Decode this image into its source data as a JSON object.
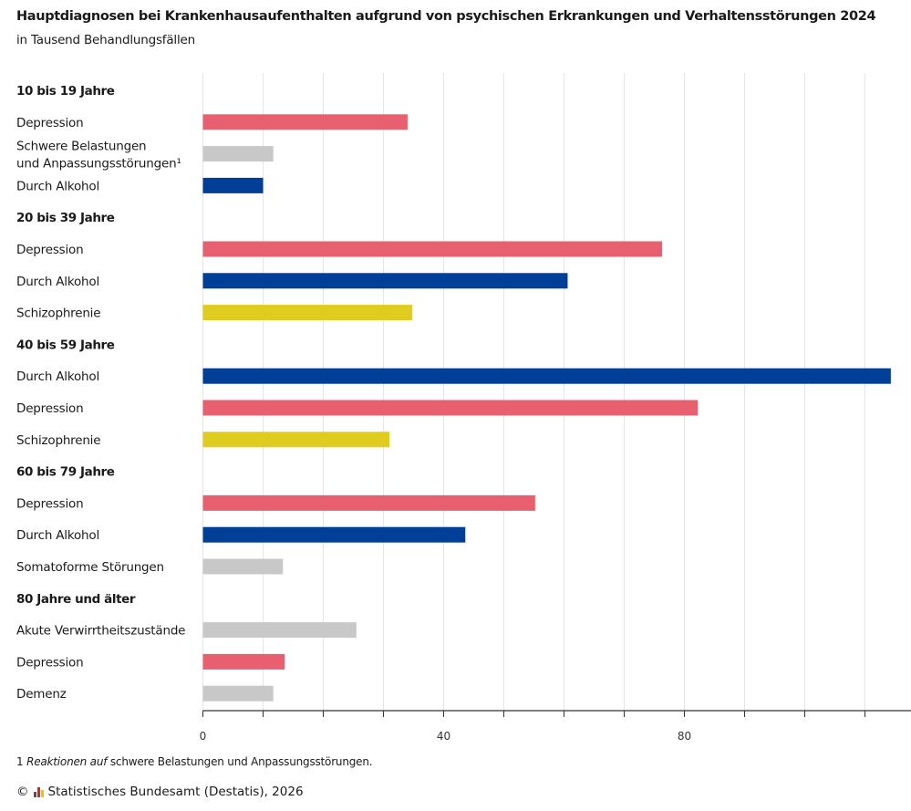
{
  "header": {
    "title": "Hauptdiagnosen bei Krankenhausaufenthalten aufgrund von psychischen Erkrankungen und Verhaltensstörungen 2024",
    "subtitle": "in Tausend Behandlungsfällen"
  },
  "footnote": {
    "number": "1",
    "italic": "Reaktionen auf",
    "text": " schwere Belastungen und Anpassungsstörungen."
  },
  "source": {
    "copyright": "©",
    "text": "Statistisches Bundesamt (Destatis), 2026"
  },
  "colors": {
    "depression": "#e8606f",
    "alkohol": "#003f98",
    "schizophrenie": "#e0cc1f",
    "other": "#c8c8c8",
    "grid": "#e6e6e6",
    "axis": "#333333"
  },
  "chart_data": {
    "type": "bar",
    "orientation": "horizontal",
    "title": "Hauptdiagnosen bei Krankenhausaufenthalten aufgrund von psychischen Erkrankungen und Verhaltensstörungen 2024",
    "subtitle": "in Tausend Behandlungsfällen",
    "xlabel": "",
    "ylabel": "",
    "xlim": [
      0,
      117
    ],
    "xticks": [
      0,
      10,
      20,
      30,
      40,
      50,
      60,
      70,
      80,
      90,
      100,
      110
    ],
    "xtick_labels": [
      {
        "value": 0,
        "label": "0"
      },
      {
        "value": 40,
        "label": "40"
      },
      {
        "value": 80,
        "label": "80"
      }
    ],
    "grid": true,
    "legend": "none",
    "groups": [
      {
        "label": "10 bis 19 Jahre",
        "bars": [
          {
            "label": "Depression",
            "value": 34,
            "category": "depression"
          },
          {
            "label": "Schwere Belastungen\nund Anpassungsstörungen¹",
            "value": 11.7,
            "category": "other"
          },
          {
            "label": "Durch Alkohol",
            "value": 10,
            "category": "alkohol"
          }
        ]
      },
      {
        "label": "20 bis 39 Jahre",
        "bars": [
          {
            "label": "Depression",
            "value": 76.3,
            "category": "depression"
          },
          {
            "label": "Durch Alkohol",
            "value": 60.6,
            "category": "alkohol"
          },
          {
            "label": "Schizophrenie",
            "value": 34.8,
            "category": "schizophrenie"
          }
        ]
      },
      {
        "label": "40 bis 59 Jahre",
        "bars": [
          {
            "label": "Durch Alkohol",
            "value": 114.3,
            "category": "alkohol"
          },
          {
            "label": "Depression",
            "value": 82.2,
            "category": "depression"
          },
          {
            "label": "Schizophrenie",
            "value": 31,
            "category": "schizophrenie"
          }
        ]
      },
      {
        "label": "60 bis 79 Jahre",
        "bars": [
          {
            "label": "Depression",
            "value": 55.2,
            "category": "depression"
          },
          {
            "label": "Durch Alkohol",
            "value": 43.6,
            "category": "alkohol"
          },
          {
            "label": "Somatoforme Störungen",
            "value": 13.3,
            "category": "other"
          }
        ]
      },
      {
        "label": "80 Jahre und älter",
        "bars": [
          {
            "label": "Akute Verwirrtheitszustände",
            "value": 25.5,
            "category": "other"
          },
          {
            "label": "Depression",
            "value": 13.6,
            "category": "depression"
          },
          {
            "label": "Demenz",
            "value": 11.7,
            "category": "other"
          }
        ]
      }
    ]
  }
}
